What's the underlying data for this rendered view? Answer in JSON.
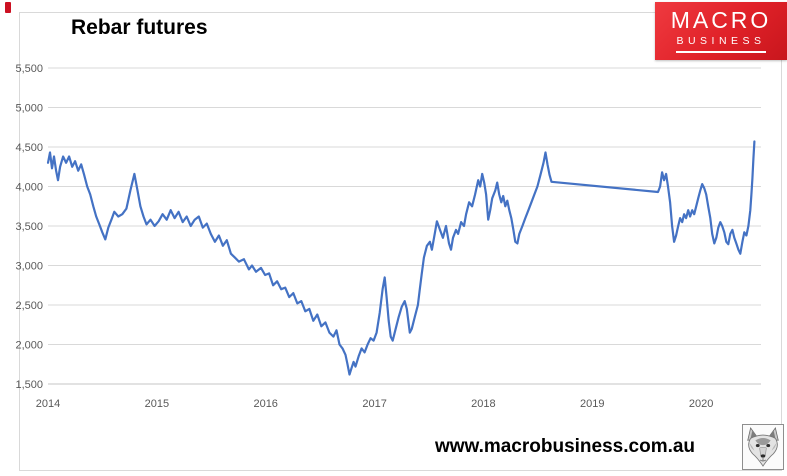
{
  "header": {
    "title": "Rebar futures"
  },
  "logo": {
    "line1": "MACRO",
    "line2": "BUSINESS",
    "bg_color": "#E0242A",
    "text_color": "#FFFFFF"
  },
  "footer": {
    "url": "www.macrobusiness.com.au",
    "logo_icon": "wolf-face-icon"
  },
  "decor": {
    "top_left_mark_color": "#CC1122"
  },
  "chart_data": {
    "type": "line",
    "title": "Rebar futures",
    "xlabel": "",
    "ylabel": "",
    "legend": "none",
    "grid": "horizontal",
    "xlim": [
      2014,
      2020.55
    ],
    "ylim": [
      1500,
      5500
    ],
    "line_color": "#4472C4",
    "grid_color": "#D9D9D9",
    "axis_color": "#C6C6C6",
    "tick_label_color": "#595959",
    "y_ticks": [
      {
        "value": 1500,
        "label": "1,500"
      },
      {
        "value": 2000,
        "label": "2,000"
      },
      {
        "value": 2500,
        "label": "2,500"
      },
      {
        "value": 3000,
        "label": "3,000"
      },
      {
        "value": 3500,
        "label": "3,500"
      },
      {
        "value": 4000,
        "label": "4,000"
      },
      {
        "value": 4500,
        "label": "4,500"
      },
      {
        "value": 5000,
        "label": "5,000"
      },
      {
        "value": 5500,
        "label": "5,500"
      }
    ],
    "x_ticks": [
      {
        "value": 2014,
        "label": "2014"
      },
      {
        "value": 2015,
        "label": "2015"
      },
      {
        "value": 2016,
        "label": "2016"
      },
      {
        "value": 2017,
        "label": "2017"
      },
      {
        "value": 2018,
        "label": "2018"
      },
      {
        "value": 2019,
        "label": "2019"
      },
      {
        "value": 2020,
        "label": "2020"
      }
    ],
    "series": [
      {
        "name": "Rebar futures",
        "points": [
          [
            2014.0,
            4300
          ],
          [
            2014.018,
            4430
          ],
          [
            2014.037,
            4230
          ],
          [
            2014.055,
            4380
          ],
          [
            2014.074,
            4200
          ],
          [
            2014.092,
            4080
          ],
          [
            2014.111,
            4250
          ],
          [
            2014.139,
            4380
          ],
          [
            2014.166,
            4300
          ],
          [
            2014.194,
            4380
          ],
          [
            2014.222,
            4250
          ],
          [
            2014.249,
            4320
          ],
          [
            2014.277,
            4200
          ],
          [
            2014.305,
            4280
          ],
          [
            2014.332,
            4150
          ],
          [
            2014.36,
            4000
          ],
          [
            2014.388,
            3900
          ],
          [
            2014.416,
            3750
          ],
          [
            2014.443,
            3620
          ],
          [
            2014.471,
            3520
          ],
          [
            2014.499,
            3420
          ],
          [
            2014.526,
            3330
          ],
          [
            2014.554,
            3480
          ],
          [
            2014.582,
            3580
          ],
          [
            2014.609,
            3680
          ],
          [
            2014.646,
            3620
          ],
          [
            2014.683,
            3650
          ],
          [
            2014.72,
            3720
          ],
          [
            2014.757,
            3950
          ],
          [
            2014.794,
            4160
          ],
          [
            2014.822,
            3950
          ],
          [
            2014.849,
            3750
          ],
          [
            2014.877,
            3620
          ],
          [
            2014.905,
            3520
          ],
          [
            2014.942,
            3580
          ],
          [
            2014.979,
            3500
          ],
          [
            2015.016,
            3560
          ],
          [
            2015.053,
            3650
          ],
          [
            2015.09,
            3580
          ],
          [
            2015.127,
            3700
          ],
          [
            2015.163,
            3600
          ],
          [
            2015.2,
            3680
          ],
          [
            2015.237,
            3550
          ],
          [
            2015.274,
            3620
          ],
          [
            2015.311,
            3500
          ],
          [
            2015.348,
            3580
          ],
          [
            2015.385,
            3620
          ],
          [
            2015.422,
            3480
          ],
          [
            2015.459,
            3530
          ],
          [
            2015.496,
            3400
          ],
          [
            2015.533,
            3300
          ],
          [
            2015.57,
            3380
          ],
          [
            2015.607,
            3250
          ],
          [
            2015.643,
            3320
          ],
          [
            2015.68,
            3150
          ],
          [
            2015.717,
            3100
          ],
          [
            2015.754,
            3050
          ],
          [
            2015.8,
            3080
          ],
          [
            2015.846,
            2950
          ],
          [
            2015.874,
            3000
          ],
          [
            2015.911,
            2920
          ],
          [
            2015.957,
            2970
          ],
          [
            2015.994,
            2880
          ],
          [
            2016.031,
            2900
          ],
          [
            2016.068,
            2750
          ],
          [
            2016.105,
            2800
          ],
          [
            2016.142,
            2700
          ],
          [
            2016.179,
            2720
          ],
          [
            2016.216,
            2600
          ],
          [
            2016.253,
            2650
          ],
          [
            2016.29,
            2520
          ],
          [
            2016.327,
            2550
          ],
          [
            2016.364,
            2420
          ],
          [
            2016.4,
            2450
          ],
          [
            2016.437,
            2300
          ],
          [
            2016.474,
            2380
          ],
          [
            2016.511,
            2230
          ],
          [
            2016.548,
            2280
          ],
          [
            2016.585,
            2150
          ],
          [
            2016.622,
            2100
          ],
          [
            2016.65,
            2180
          ],
          [
            2016.678,
            2000
          ],
          [
            2016.705,
            1950
          ],
          [
            2016.733,
            1870
          ],
          [
            2016.751,
            1750
          ],
          [
            2016.77,
            1620
          ],
          [
            2016.788,
            1700
          ],
          [
            2016.807,
            1780
          ],
          [
            2016.825,
            1720
          ],
          [
            2016.853,
            1850
          ],
          [
            2016.881,
            1950
          ],
          [
            2016.908,
            1900
          ],
          [
            2016.936,
            2000
          ],
          [
            2016.964,
            2080
          ],
          [
            2016.991,
            2050
          ],
          [
            2017.019,
            2150
          ],
          [
            2017.047,
            2400
          ],
          [
            2017.074,
            2700
          ],
          [
            2017.093,
            2850
          ],
          [
            2017.111,
            2600
          ],
          [
            2017.13,
            2300
          ],
          [
            2017.148,
            2100
          ],
          [
            2017.167,
            2050
          ],
          [
            2017.194,
            2200
          ],
          [
            2017.222,
            2350
          ],
          [
            2017.25,
            2480
          ],
          [
            2017.277,
            2550
          ],
          [
            2017.296,
            2450
          ],
          [
            2017.324,
            2150
          ],
          [
            2017.342,
            2200
          ],
          [
            2017.37,
            2350
          ],
          [
            2017.398,
            2500
          ],
          [
            2017.416,
            2700
          ],
          [
            2017.434,
            2900
          ],
          [
            2017.453,
            3100
          ],
          [
            2017.481,
            3250
          ],
          [
            2017.508,
            3300
          ],
          [
            2017.527,
            3200
          ],
          [
            2017.555,
            3420
          ],
          [
            2017.573,
            3560
          ],
          [
            2017.601,
            3450
          ],
          [
            2017.628,
            3350
          ],
          [
            2017.656,
            3500
          ],
          [
            2017.684,
            3280
          ],
          [
            2017.702,
            3200
          ],
          [
            2017.721,
            3350
          ],
          [
            2017.748,
            3450
          ],
          [
            2017.767,
            3400
          ],
          [
            2017.795,
            3550
          ],
          [
            2017.822,
            3500
          ],
          [
            2017.841,
            3650
          ],
          [
            2017.868,
            3800
          ],
          [
            2017.896,
            3750
          ],
          [
            2017.924,
            3900
          ],
          [
            2017.952,
            4080
          ],
          [
            2017.97,
            4000
          ],
          [
            2017.989,
            4160
          ],
          [
            2018.007,
            4050
          ],
          [
            2018.025,
            3900
          ],
          [
            2018.044,
            3580
          ],
          [
            2018.062,
            3700
          ],
          [
            2018.081,
            3850
          ],
          [
            2018.109,
            3950
          ],
          [
            2018.127,
            4050
          ],
          [
            2018.145,
            3900
          ],
          [
            2018.164,
            3800
          ],
          [
            2018.182,
            3880
          ],
          [
            2018.201,
            3750
          ],
          [
            2018.219,
            3820
          ],
          [
            2018.238,
            3700
          ],
          [
            2018.256,
            3600
          ],
          [
            2018.275,
            3450
          ],
          [
            2018.293,
            3300
          ],
          [
            2018.312,
            3280
          ],
          [
            2018.33,
            3400
          ],
          [
            2018.358,
            3500
          ],
          [
            2018.385,
            3600
          ],
          [
            2018.413,
            3700
          ],
          [
            2018.441,
            3800
          ],
          [
            2018.468,
            3900
          ],
          [
            2018.496,
            4000
          ],
          [
            2018.524,
            4150
          ],
          [
            2018.552,
            4300
          ],
          [
            2018.57,
            4430
          ],
          [
            2018.589,
            4280
          ],
          [
            2018.607,
            4150
          ],
          [
            2018.625,
            4060
          ],
          [
            2019.604,
            3930
          ],
          [
            2019.623,
            4000
          ],
          [
            2019.641,
            4180
          ],
          [
            2019.66,
            4080
          ],
          [
            2019.678,
            4160
          ],
          [
            2019.696,
            4000
          ],
          [
            2019.715,
            3800
          ],
          [
            2019.733,
            3500
          ],
          [
            2019.752,
            3300
          ],
          [
            2019.77,
            3380
          ],
          [
            2019.789,
            3500
          ],
          [
            2019.807,
            3600
          ],
          [
            2019.826,
            3550
          ],
          [
            2019.844,
            3650
          ],
          [
            2019.862,
            3600
          ],
          [
            2019.881,
            3700
          ],
          [
            2019.899,
            3620
          ],
          [
            2019.918,
            3700
          ],
          [
            2019.936,
            3650
          ],
          [
            2019.955,
            3750
          ],
          [
            2019.973,
            3850
          ],
          [
            2019.992,
            3950
          ],
          [
            2020.01,
            4030
          ],
          [
            2020.028,
            3980
          ],
          [
            2020.047,
            3900
          ],
          [
            2020.065,
            3750
          ],
          [
            2020.084,
            3600
          ],
          [
            2020.102,
            3400
          ],
          [
            2020.121,
            3280
          ],
          [
            2020.139,
            3350
          ],
          [
            2020.158,
            3480
          ],
          [
            2020.176,
            3550
          ],
          [
            2020.194,
            3500
          ],
          [
            2020.213,
            3420
          ],
          [
            2020.231,
            3300
          ],
          [
            2020.25,
            3270
          ],
          [
            2020.268,
            3400
          ],
          [
            2020.287,
            3450
          ],
          [
            2020.305,
            3350
          ],
          [
            2020.323,
            3280
          ],
          [
            2020.342,
            3200
          ],
          [
            2020.36,
            3150
          ],
          [
            2020.379,
            3300
          ],
          [
            2020.397,
            3420
          ],
          [
            2020.416,
            3380
          ],
          [
            2020.434,
            3500
          ],
          [
            2020.452,
            3700
          ],
          [
            2020.462,
            3900
          ],
          [
            2020.471,
            4100
          ],
          [
            2020.48,
            4350
          ],
          [
            2020.489,
            4570
          ]
        ]
      }
    ]
  }
}
